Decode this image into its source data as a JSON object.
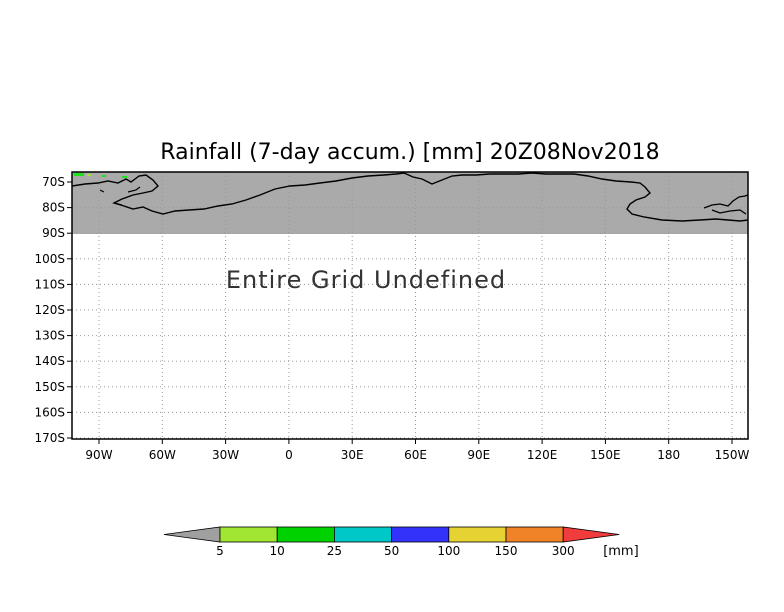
{
  "map": {
    "title": "Rainfall (7-day accum.) [mm] 20Z08Nov2018",
    "message": "Entire Grid Undefined",
    "lat_labels": [
      "70S",
      "80S",
      "90S",
      "100S",
      "110S",
      "120S",
      "130S",
      "140S",
      "150S",
      "160S",
      "170S"
    ],
    "lon_labels": [
      "90W",
      "60W",
      "30W",
      "0",
      "30E",
      "60E",
      "90E",
      "120E",
      "150E",
      "180",
      "150W"
    ],
    "undefined_fill": "#aaaaaa",
    "background": "#ffffff"
  },
  "colorbar": {
    "unit": "[mm]",
    "labels": [
      "5",
      "10",
      "25",
      "50",
      "100",
      "150",
      "300"
    ],
    "colors": [
      "#a0a0a0",
      "#a0e632",
      "#00d200",
      "#00c8c8",
      "#3232fa",
      "#e6d232",
      "#f08228",
      "#f03c3c"
    ]
  }
}
